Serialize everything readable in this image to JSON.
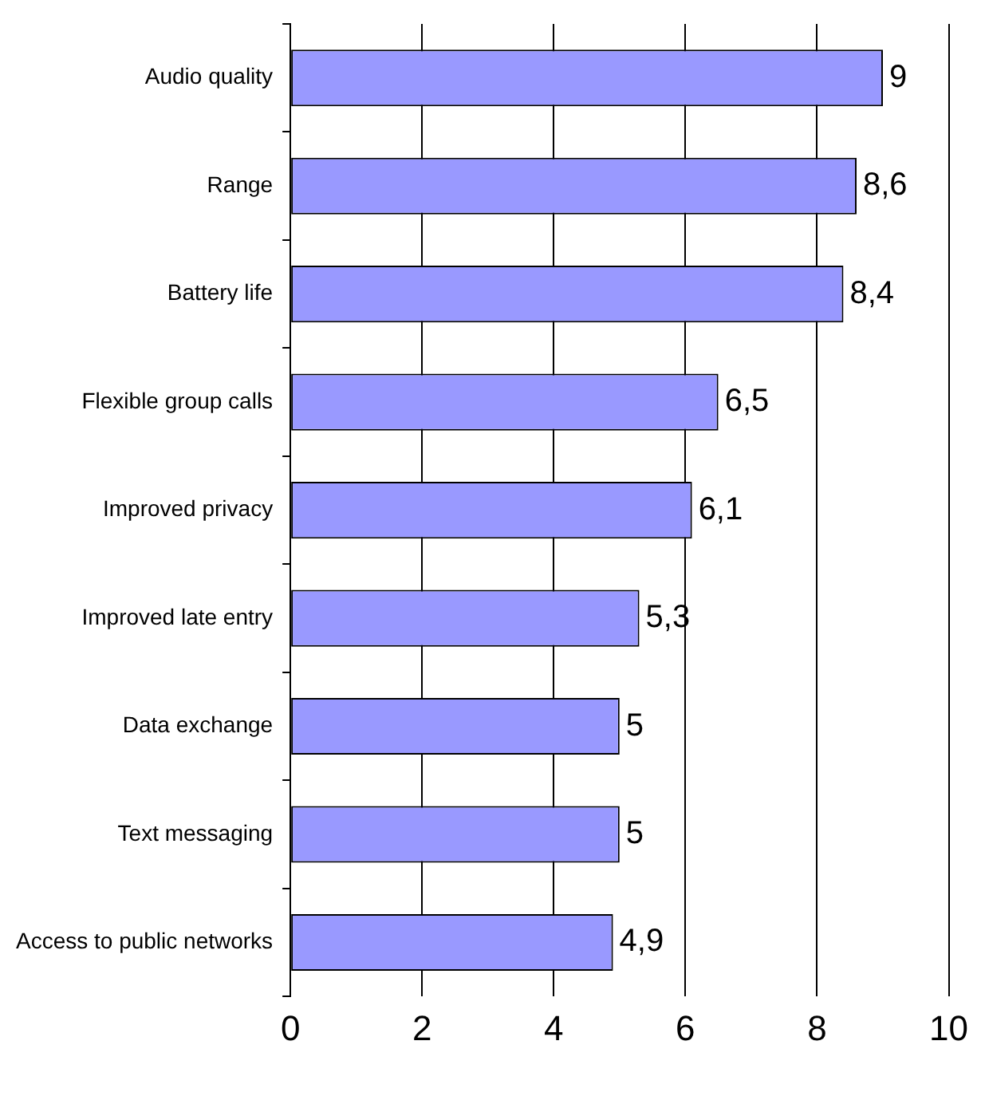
{
  "chart_data": {
    "type": "bar",
    "orientation": "horizontal",
    "categories": [
      "Audio quality",
      "Range",
      "Battery life",
      "Flexible group calls",
      "Improved privacy",
      "Improved late entry",
      "Data exchange",
      "Text messaging",
      "Access to public networks"
    ],
    "values": [
      9,
      8.6,
      8.4,
      6.5,
      6.1,
      5.3,
      5,
      5,
      4.9
    ],
    "value_labels": [
      "9",
      "8,6",
      "8,4",
      "6,5",
      "6,1",
      "5,3",
      "5",
      "5",
      "4,9"
    ],
    "color": "#9999ff",
    "xlim": [
      0,
      10
    ],
    "xticks": [
      0,
      2,
      4,
      6,
      8,
      10
    ],
    "grid": "x",
    "legend": false
  }
}
